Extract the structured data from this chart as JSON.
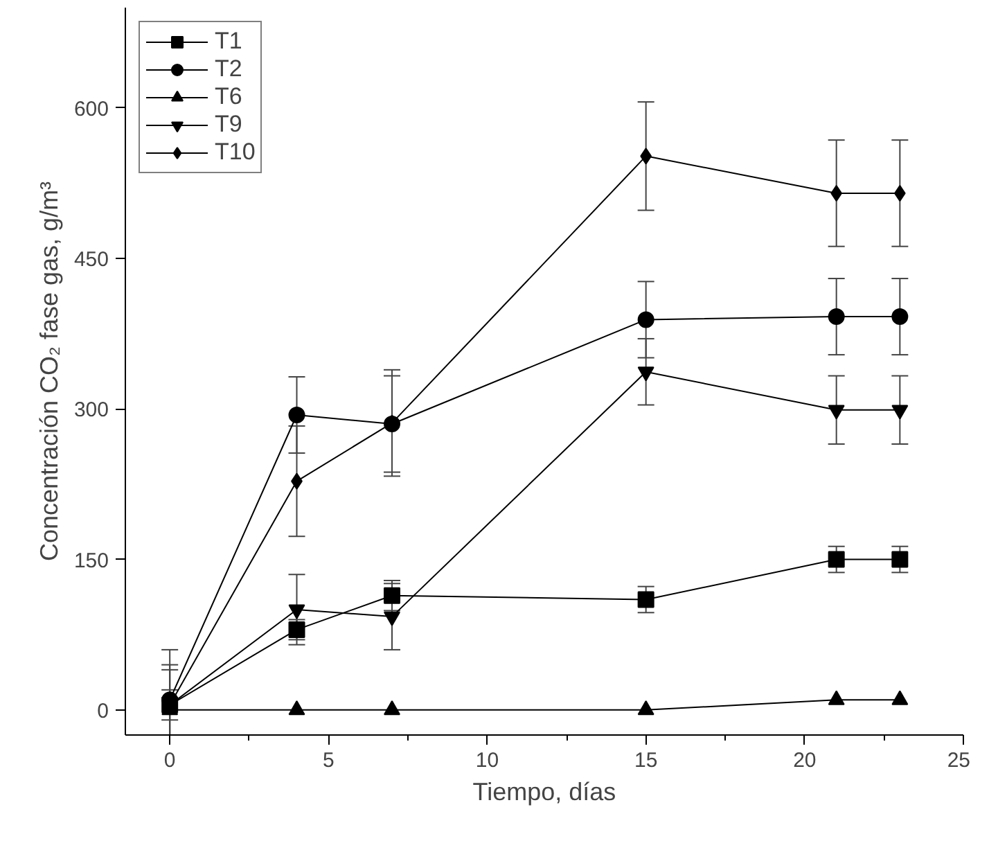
{
  "chart_data": {
    "type": "line",
    "xlabel": "Tiempo, días",
    "ylabel": "Concentración CO₂ fase gas, g/m³",
    "x": [
      0,
      4,
      7,
      15,
      21,
      23
    ],
    "xlim": [
      -1.4,
      25
    ],
    "ylim": [
      -25,
      700
    ],
    "xticks": [
      0,
      5,
      10,
      15,
      20,
      25
    ],
    "yticks": [
      0,
      150,
      300,
      450,
      600
    ],
    "grid": false,
    "legend": "top left",
    "line_style": "solid",
    "series": [
      {
        "name": "T1",
        "color": "#000000",
        "marker": "square",
        "values": [
          5,
          80,
          114,
          110,
          150,
          150
        ],
        "errors": [
          15,
          10,
          15,
          13,
          13,
          13
        ]
      },
      {
        "name": "T2",
        "color": "#000000",
        "marker": "circle",
        "values": [
          10,
          294,
          285,
          389,
          392,
          392
        ],
        "errors": [
          50,
          38,
          48,
          38,
          38,
          38
        ]
      },
      {
        "name": "T6",
        "color": "#000000",
        "marker": "triangle",
        "values": [
          0,
          0,
          0,
          0,
          10,
          10
        ]
      },
      {
        "name": "T9",
        "color": "#000000",
        "marker": "triangle",
        "values": [
          5,
          100,
          93,
          337,
          299,
          299
        ],
        "errors": [
          35,
          35,
          33,
          33,
          34,
          34
        ]
      },
      {
        "name": "T10",
        "color": "#000000",
        "marker": "diamond",
        "values": [
          5,
          228,
          286,
          552,
          515,
          515
        ],
        "errors": [
          40,
          55,
          53,
          54,
          53,
          53
        ]
      }
    ]
  }
}
